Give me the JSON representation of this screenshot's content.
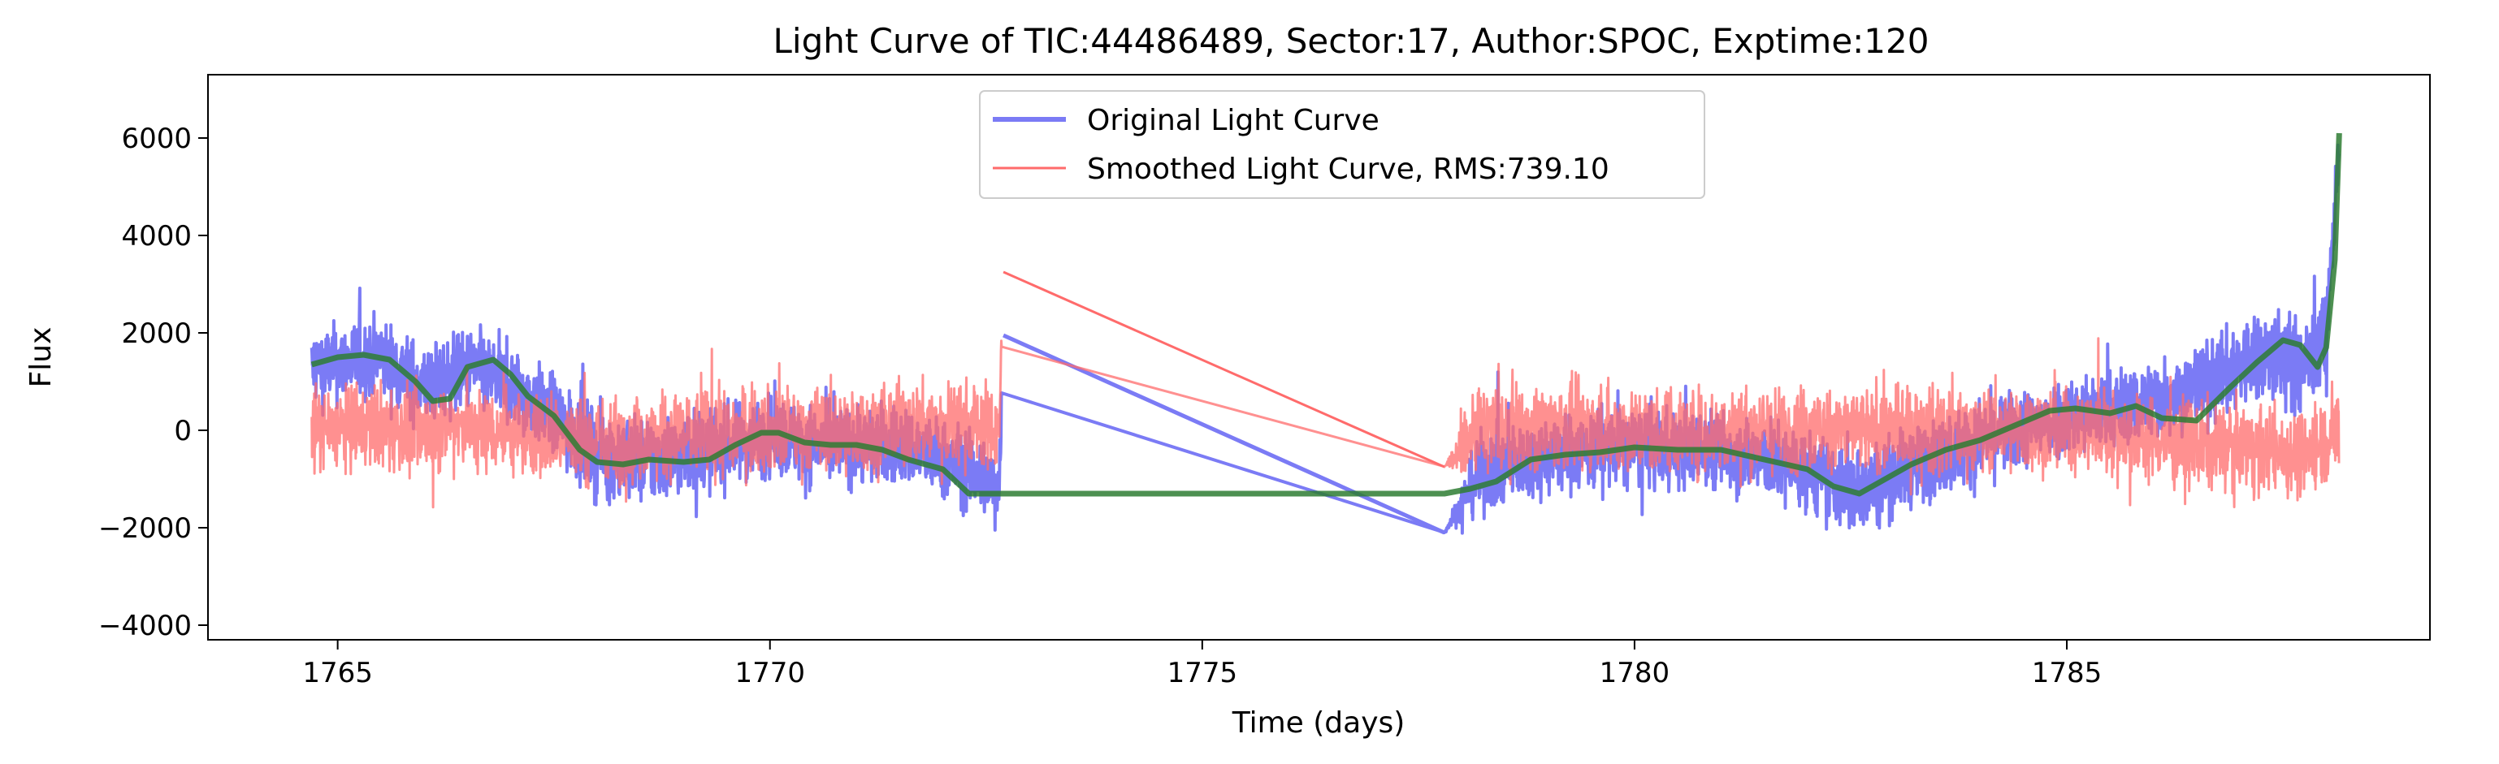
{
  "chart_data": {
    "type": "line",
    "title": "Light Curve of TIC:44486489, Sector:17, Author:SPOC, Exptime:120",
    "xlabel": "Time (days)",
    "ylabel": "Flux",
    "xlim": [
      1763.5,
      1789.2
    ],
    "ylim": [
      -4300,
      7300
    ],
    "xticks": [
      1765,
      1770,
      1775,
      1780,
      1785
    ],
    "xtick_labels": [
      "1765",
      "1770",
      "1775",
      "1780",
      "1785"
    ],
    "yticks": [
      -4000,
      -2000,
      0,
      2000,
      4000,
      6000
    ],
    "ytick_labels": [
      "−4000",
      "−2000",
      "0",
      "2000",
      "4000",
      "6000"
    ],
    "grid": false,
    "legend_position": "upper-center",
    "series": [
      {
        "name": "Original Light Curve",
        "color": "#7b7bf5",
        "style": "noisy",
        "x": [
          1764.7,
          1765.5,
          1766.0,
          1766.5,
          1766.55,
          1767.0,
          1767.5,
          1768.0,
          1768.5,
          1769.0,
          1769.5,
          1770.0,
          1770.5,
          1771.0,
          1771.5,
          1772.0,
          1772.4,
          1772.65,
          1772.7,
          1777.8,
          1778.2,
          1779.0,
          1780.0,
          1781.0,
          1782.0,
          1782.5,
          1783.0,
          1784.0,
          1785.0,
          1785.5,
          1786.5,
          1787.3,
          1787.7,
          1788.0,
          1788.15
        ],
        "y": [
          1300,
          1500,
          900,
          1200,
          1300,
          900,
          300,
          -500,
          -600,
          -500,
          -300,
          -100,
          -300,
          -300,
          -300,
          -600,
          -900,
          -1200,
          1950,
          -2100,
          -900,
          -500,
          -350,
          -400,
          -800,
          -1300,
          -900,
          -200,
          300,
          400,
          900,
          1600,
          1300,
          1800,
          6000
        ],
        "noise_amplitude": 1400,
        "noise_scale": [
          1,
          1,
          1,
          1,
          1,
          1,
          1,
          1.1,
          1.1,
          1.1,
          1,
          1,
          1,
          1,
          1,
          1,
          1,
          1,
          0,
          0,
          1,
          1,
          1,
          1,
          1,
          1.1,
          1,
          1,
          1,
          1,
          1,
          1.2,
          1.2,
          1.2,
          0.6
        ]
      },
      {
        "name": "Smoothed Light Curve, RMS:739.10",
        "color": "#ff6b6b",
        "style": "noisy",
        "x": [
          1764.7,
          1765.5,
          1766.0,
          1766.5,
          1766.55,
          1767.0,
          1767.5,
          1768.0,
          1768.5,
          1769.0,
          1769.5,
          1770.0,
          1770.5,
          1771.0,
          1771.5,
          1772.0,
          1772.4,
          1772.65,
          1772.7,
          1777.8,
          1778.2,
          1779.0,
          1780.0,
          1781.0,
          1782.0,
          1782.5,
          1783.0,
          1784.0,
          1785.0,
          1785.5,
          1786.5,
          1787.3,
          1787.7,
          1788.0,
          1788.15
        ],
        "y": [
          0,
          100,
          0,
          200,
          0,
          0,
          -100,
          -200,
          -200,
          -100,
          0,
          0,
          0,
          0,
          100,
          100,
          100,
          0,
          3250,
          -750,
          0,
          100,
          0,
          0,
          0,
          0,
          0,
          0,
          0,
          0,
          -300,
          -400,
          -500,
          -200,
          0
        ],
        "noise_amplitude": 1500,
        "noise_scale": [
          1,
          1,
          1,
          1,
          1,
          1,
          1,
          1,
          1,
          1,
          1,
          1,
          1,
          1,
          1,
          1,
          1,
          1,
          0,
          0,
          1,
          1,
          1,
          1,
          1,
          1,
          1,
          1,
          1,
          1,
          1,
          1,
          1,
          1,
          1
        ]
      },
      {
        "name": "",
        "color": "#2e7d32",
        "style": "line",
        "x": [
          1764.7,
          1765.0,
          1765.3,
          1765.6,
          1765.9,
          1766.1,
          1766.3,
          1766.5,
          1766.8,
          1767.0,
          1767.2,
          1767.5,
          1767.8,
          1768.0,
          1768.3,
          1768.6,
          1769.0,
          1769.3,
          1769.6,
          1769.9,
          1770.1,
          1770.4,
          1770.7,
          1771.0,
          1771.3,
          1771.6,
          1772.0,
          1772.3,
          1772.6,
          1777.8,
          1778.1,
          1778.4,
          1778.8,
          1779.2,
          1779.6,
          1780.0,
          1780.5,
          1781.0,
          1781.5,
          1782.0,
          1782.3,
          1782.6,
          1782.9,
          1783.2,
          1783.6,
          1784.0,
          1784.4,
          1784.8,
          1785.1,
          1785.5,
          1785.8,
          1786.1,
          1786.5,
          1786.9,
          1787.2,
          1787.5,
          1787.7,
          1787.9,
          1788.0,
          1788.1,
          1788.15
        ],
        "y": [
          1350,
          1500,
          1550,
          1450,
          1000,
          600,
          650,
          1300,
          1450,
          1150,
          700,
          300,
          -400,
          -650,
          -700,
          -600,
          -650,
          -600,
          -300,
          -50,
          -50,
          -250,
          -300,
          -300,
          -400,
          -600,
          -800,
          -1300,
          -1300,
          -1300,
          -1200,
          -1050,
          -600,
          -500,
          -450,
          -350,
          -400,
          -400,
          -600,
          -800,
          -1150,
          -1300,
          -1000,
          -700,
          -400,
          -200,
          100,
          400,
          450,
          350,
          500,
          250,
          200,
          900,
          1400,
          1850,
          1750,
          1300,
          1700,
          3500,
          6100
        ]
      }
    ]
  }
}
